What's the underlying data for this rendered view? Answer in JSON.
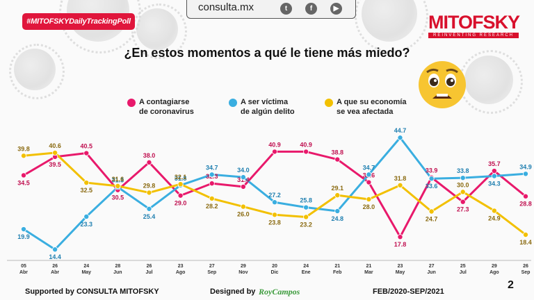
{
  "header": {
    "tag": "#MITOFSKYDailyTrackingPoll",
    "site": "consulta.mx",
    "social_icons": [
      "twitter-icon",
      "facebook-icon",
      "youtube-icon"
    ],
    "logo_main": "MITOFSKY",
    "logo_sub": "REINVENTING RESEARCH"
  },
  "question": "¿En estos momentos a qué le tiene más miedo?",
  "footer": {
    "supported": "Supported by   CONSULTA   MITOFSKY",
    "designed": "Designed by",
    "designer": "RoyCampos",
    "range": "FEB/2020-SEP/2021",
    "page": "2"
  },
  "colors": {
    "pink": "#e8196b",
    "blue": "#3aaee0",
    "yellow": "#f2c000",
    "brand": "#d8102c"
  },
  "chart_data": {
    "type": "line",
    "title": "¿En estos momentos a qué le tiene más miedo?",
    "categories": [
      [
        "05",
        "Abr"
      ],
      [
        "26",
        "Abr"
      ],
      [
        "24",
        "May"
      ],
      [
        "28",
        "Jun"
      ],
      [
        "26",
        "Jul"
      ],
      [
        "23",
        "Ago"
      ],
      [
        "27",
        "Sep"
      ],
      [
        "29",
        "Nov"
      ],
      [
        "20",
        "Dic"
      ],
      [
        "24",
        "Ene"
      ],
      [
        "21",
        "Feb"
      ],
      [
        "21",
        "Mar"
      ],
      [
        "23",
        "May"
      ],
      [
        "27",
        "Jun"
      ],
      [
        "25",
        "Jul"
      ],
      [
        "29",
        "Ago"
      ],
      [
        "26",
        "Sep"
      ]
    ],
    "ylim": [
      12,
      47
    ],
    "series": [
      {
        "name": "A contagiarse de coronavirus",
        "legend": [
          "A contagiarse",
          "de coronavirus"
        ],
        "color": "#e8196b",
        "label_color": "#c01050",
        "values": [
          34.5,
          39.5,
          40.5,
          30.5,
          38.0,
          29.0,
          32.3,
          31.4,
          40.9,
          40.9,
          38.8,
          32.6,
          17.8,
          33.9,
          27.3,
          35.7,
          28.8
        ],
        "labels": [
          "34.5",
          "39.5",
          "40.5",
          "30.5",
          "38.0",
          "29.0",
          "32.3",
          "31.4",
          "40.9",
          "40.9",
          "38.8",
          "32.6",
          "17.8",
          "33.9",
          "27.3",
          "35.7",
          "28.8"
        ],
        "label_pos": [
          "b",
          "b",
          "a",
          "b",
          "a",
          "b",
          "a",
          "a",
          "a",
          "a",
          "a",
          "a",
          "b",
          "a",
          "b",
          "a",
          "b"
        ]
      },
      {
        "name": "A ser víctima de algún delito",
        "legend": [
          "A ser víctima",
          "de algún delito"
        ],
        "color": "#3aaee0",
        "label_color": "#1f7fb0",
        "values": [
          19.9,
          14.4,
          23.3,
          31.3,
          25.4,
          31.8,
          34.7,
          34.0,
          27.2,
          25.8,
          24.8,
          34.7,
          44.7,
          33.6,
          33.8,
          34.3,
          34.9
        ],
        "labels": [
          "19.9",
          "14.4",
          "23.3",
          "31.3",
          "25.4",
          "31.8",
          "34.7",
          "34.0",
          "27.2",
          "25.8",
          "24.8",
          "34.7",
          "44.7",
          "33.6",
          "33.8",
          "34.3",
          "34.9"
        ],
        "label_pos": [
          "b",
          "b",
          "b",
          "a",
          "b",
          "a",
          "a",
          "a",
          "a",
          "a",
          "b",
          "a",
          "a",
          "b",
          "a",
          "b",
          "a"
        ]
      },
      {
        "name": "A que su economía se vea afectada",
        "legend": [
          "A que su economía",
          "se vea afectada"
        ],
        "color": "#f2c000",
        "label_color": "#8a6a10",
        "values": [
          39.8,
          40.6,
          32.5,
          31.6,
          29.8,
          32.1,
          28.2,
          26.0,
          23.8,
          23.2,
          29.1,
          28.0,
          31.8,
          24.7,
          30.0,
          24.9,
          18.4
        ],
        "labels": [
          "39.8",
          "40.6",
          "32.5",
          "31.6",
          "29.8",
          "32.1",
          "28.2",
          "26.0",
          "23.8",
          "23.2",
          "29.1",
          "28.0",
          "31.8",
          "24.7",
          "30.0",
          "24.9",
          "18.4"
        ],
        "label_pos": [
          "a",
          "a",
          "b",
          "a",
          "a",
          "a",
          "b",
          "b",
          "b",
          "b",
          "a",
          "b",
          "a",
          "b",
          "a",
          "b",
          "b"
        ]
      }
    ]
  }
}
